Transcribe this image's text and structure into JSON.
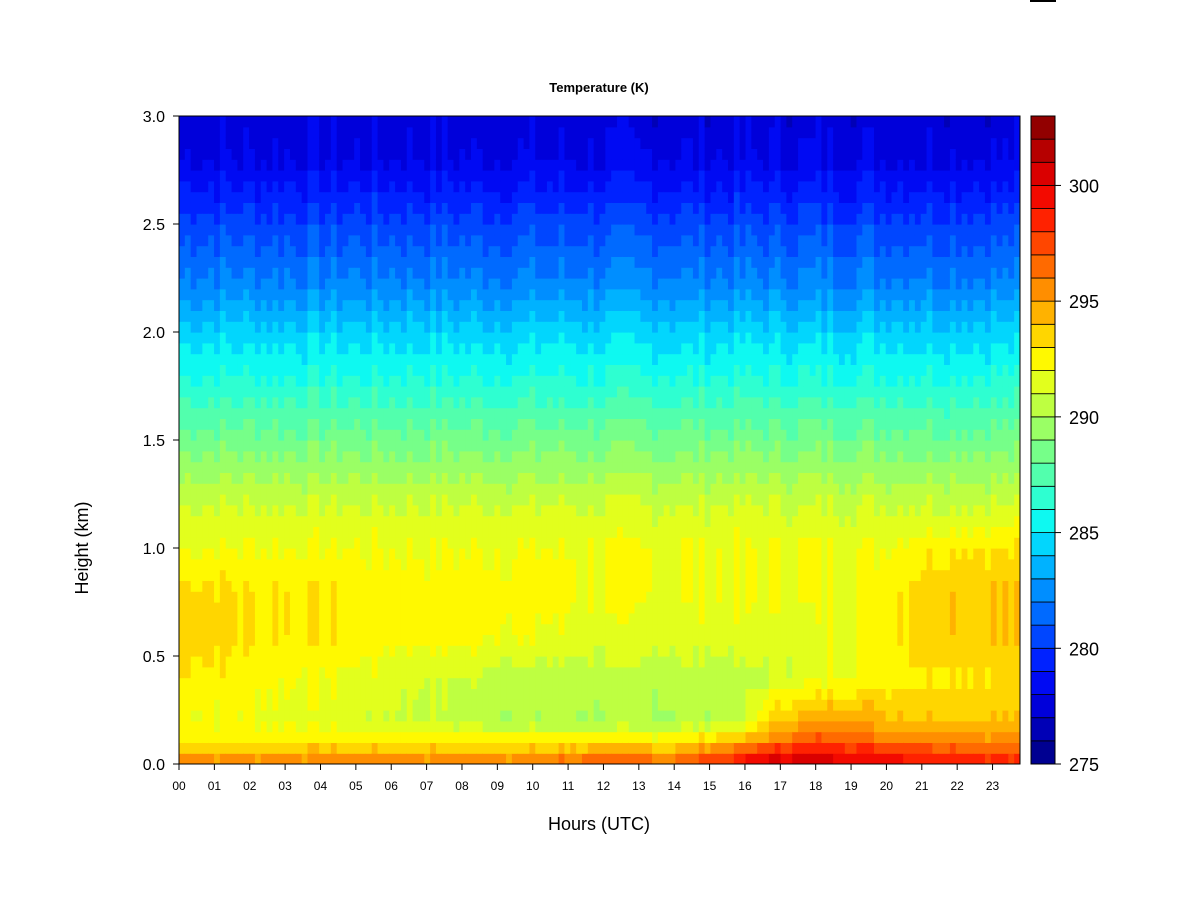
{
  "chart_data": {
    "type": "heatmap",
    "title": "Temperature (K)",
    "xlabel": "Hours (UTC)",
    "ylabel": "Height (km)",
    "x_ticks": [
      "00",
      "01",
      "02",
      "03",
      "04",
      "05",
      "06",
      "07",
      "08",
      "09",
      "10",
      "11",
      "12",
      "13",
      "14",
      "15",
      "16",
      "17",
      "18",
      "19",
      "20",
      "21",
      "22",
      "23"
    ],
    "x_range": [
      0,
      24
    ],
    "y_ticks": [
      0.0,
      0.5,
      1.0,
      1.5,
      2.0,
      2.5,
      3.0
    ],
    "y_tick_labels": [
      "0.0",
      "0.5",
      "1.0",
      "1.5",
      "2.0",
      "2.5",
      "3.0"
    ],
    "y_range": [
      0.0,
      3.0
    ],
    "colorbar": {
      "range": [
        275,
        303
      ],
      "tick_values": [
        275,
        280,
        285,
        290,
        295,
        300
      ],
      "tick_labels": [
        "275",
        "280",
        "285",
        "290",
        "295",
        "300"
      ],
      "levels": 28,
      "colors": [
        "#00007f",
        "#0000b0",
        "#0000e0",
        "#0010ff",
        "#0040ff",
        "#0070ff",
        "#00a0ff",
        "#00d0ff",
        "#10ffef",
        "#40ffbf",
        "#70ff8f",
        "#a0ff5f",
        "#d0ff2f",
        "#ffff00",
        "#ffd000",
        "#ffa000",
        "#ff7000",
        "#ff4000",
        "#ff1000",
        "#e00000",
        "#b00000",
        "#800000"
      ]
    },
    "profiles": {
      "heights_km": [
        0.0,
        0.05,
        0.1,
        0.2,
        0.4,
        0.6,
        0.8,
        1.0,
        1.2,
        1.5,
        1.8,
        2.0,
        2.2,
        2.5,
        2.8,
        3.0
      ],
      "hours": [
        0,
        2,
        4,
        6,
        8,
        10,
        12,
        14,
        16,
        17,
        18,
        19,
        20,
        21,
        22,
        24
      ],
      "temperature_K": [
        [
          296.0,
          294.5,
          293.0,
          292.0,
          293.0,
          294.0,
          293.5,
          292.0,
          291.0,
          288.5,
          286.0,
          284.5,
          282.5,
          280.5,
          278.0,
          277.5
        ],
        [
          296.0,
          294.5,
          293.0,
          292.0,
          292.5,
          293.0,
          293.0,
          292.0,
          291.0,
          288.5,
          286.0,
          284.5,
          282.5,
          280.5,
          278.0,
          277.5
        ],
        [
          296.0,
          294.5,
          293.0,
          291.5,
          292.0,
          293.0,
          293.0,
          292.0,
          291.0,
          288.5,
          286.0,
          284.5,
          282.5,
          280.5,
          278.0,
          277.5
        ],
        [
          296.0,
          294.5,
          293.0,
          291.0,
          291.5,
          292.5,
          292.5,
          292.0,
          291.0,
          288.5,
          286.0,
          284.5,
          282.5,
          280.5,
          278.0,
          277.5
        ],
        [
          296.0,
          294.5,
          293.0,
          290.5,
          291.0,
          292.5,
          292.5,
          292.0,
          291.0,
          288.5,
          286.0,
          284.5,
          282.5,
          280.5,
          278.0,
          277.5
        ],
        [
          296.0,
          294.5,
          293.0,
          290.0,
          290.5,
          292.0,
          292.5,
          292.0,
          291.0,
          288.5,
          286.0,
          284.5,
          282.5,
          280.5,
          278.0,
          277.5
        ],
        [
          297.5,
          295.5,
          293.0,
          290.0,
          290.5,
          291.5,
          292.0,
          292.0,
          291.0,
          288.5,
          286.0,
          284.5,
          282.5,
          280.5,
          278.0,
          277.5
        ],
        [
          297.0,
          295.0,
          293.0,
          290.0,
          290.5,
          291.5,
          292.0,
          292.0,
          291.0,
          288.5,
          286.0,
          284.5,
          282.5,
          280.5,
          278.0,
          277.5
        ],
        [
          299.0,
          298.0,
          294.5,
          290.5,
          290.5,
          291.5,
          292.0,
          292.0,
          291.0,
          288.5,
          286.0,
          284.5,
          282.5,
          280.5,
          278.0,
          277.5
        ],
        [
          300.5,
          299.5,
          296.0,
          294.0,
          291.0,
          291.5,
          292.0,
          292.0,
          291.0,
          288.5,
          286.0,
          284.5,
          282.5,
          280.5,
          278.0,
          277.5
        ],
        [
          301.0,
          300.0,
          297.5,
          295.0,
          291.5,
          291.5,
          292.0,
          292.0,
          291.0,
          288.5,
          286.0,
          284.5,
          282.5,
          280.5,
          278.0,
          277.5
        ],
        [
          300.5,
          299.5,
          297.0,
          295.0,
          292.0,
          292.0,
          292.0,
          292.0,
          291.0,
          288.5,
          286.0,
          284.5,
          282.5,
          280.5,
          278.0,
          277.5
        ],
        [
          300.0,
          299.0,
          296.5,
          294.5,
          292.5,
          292.5,
          292.5,
          292.0,
          291.0,
          288.5,
          286.0,
          284.5,
          282.5,
          280.5,
          278.0,
          277.5
        ],
        [
          299.5,
          298.5,
          296.0,
          294.0,
          293.0,
          293.5,
          293.5,
          292.5,
          291.0,
          288.5,
          286.0,
          284.5,
          282.5,
          280.5,
          278.0,
          277.5
        ],
        [
          299.0,
          298.0,
          296.0,
          294.0,
          293.0,
          294.0,
          294.0,
          293.0,
          291.0,
          288.5,
          286.0,
          284.5,
          282.5,
          280.5,
          278.0,
          277.5
        ],
        [
          298.5,
          297.5,
          295.5,
          294.0,
          293.0,
          294.0,
          294.0,
          293.0,
          291.0,
          288.5,
          286.0,
          284.5,
          282.5,
          280.5,
          278.0,
          277.5
        ]
      ]
    }
  }
}
